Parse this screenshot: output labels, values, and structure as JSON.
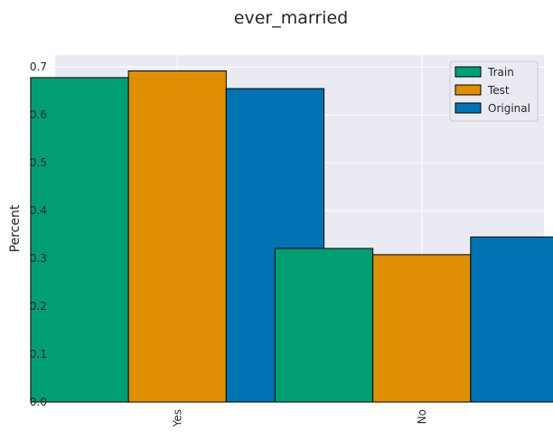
{
  "chart_data": {
    "type": "bar",
    "title": "ever_married",
    "xlabel": "",
    "ylabel": "Percent",
    "categories": [
      "Yes",
      "No"
    ],
    "series": [
      {
        "name": "Train",
        "values": [
          0.678,
          0.321
        ],
        "color": "#029e73"
      },
      {
        "name": "Test",
        "values": [
          0.692,
          0.308
        ],
        "color": "#de8f05"
      },
      {
        "name": "Original",
        "values": [
          0.655,
          0.345
        ],
        "color": "#0173b2"
      }
    ],
    "ylim": [
      0,
      0.725
    ],
    "yticks": [
      "0.0",
      "0.1",
      "0.2",
      "0.3",
      "0.4",
      "0.5",
      "0.6",
      "0.7"
    ],
    "grid": true,
    "legend_position": "top-right",
    "background": "#eaeaf2",
    "grid_color": "#ffffff"
  }
}
